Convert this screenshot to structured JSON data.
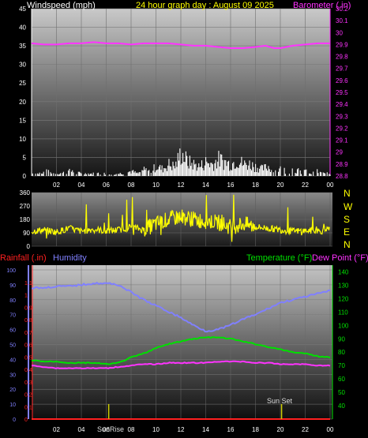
{
  "header": {
    "left_title": "Windspeed (mph)",
    "center_title": "24 hour graph day : August 09 2025",
    "right_title": "Barometer (.in)"
  },
  "colors": {
    "background": "#000000",
    "wind_bars": "#ffffff",
    "barometer": "#ff33ff",
    "wind_direction": "#ffff00",
    "humidity": "#8080ff",
    "temperature": "#00e000",
    "dew_point": "#ff33ff",
    "rainfall": "#ff2020",
    "sun_marker": "#cccc00",
    "left_axis_top": "#ffffff",
    "left_axis_humidity": "#8080ff",
    "rain_axis": "#ff2020",
    "temp_axis": "#00e000"
  },
  "wind_direction_labels": [
    "N",
    "W",
    "S",
    "E",
    "N"
  ],
  "bottom_header": {
    "rainfall_label": "Rainfall (.in)",
    "humidity_label": "Humidity",
    "temperature_label": "Temperature (°F)",
    "dewpoint_label": "Dew Point (°F)"
  },
  "sun": {
    "sunrise_label": "SunRise",
    "sunset_label": "Sun Set",
    "sunrise_hour": 6.2,
    "sunset_hour": 20.1
  },
  "chart_data": [
    {
      "type": "bar",
      "title": "Windspeed (mph) / Barometer (.in)",
      "x_tick_labels": [
        "02",
        "04",
        "06",
        "08",
        "10",
        "12",
        "14",
        "16",
        "18",
        "20",
        "22",
        "00"
      ],
      "wind_axis": {
        "ylim": [
          0,
          45
        ],
        "ticks": [
          0,
          5,
          10,
          15,
          20,
          25,
          30,
          35,
          40,
          45
        ]
      },
      "baro_axis": {
        "ylim": [
          28.8,
          30.2
        ],
        "ticks": [
          "28.8",
          "28.9",
          "29",
          "29.1",
          "29.2",
          "29.3",
          "29.4",
          "29.5",
          "29.6",
          "29.7",
          "29.8",
          "29.9",
          "30",
          "30.1",
          "30.2"
        ]
      },
      "windspeed_max_points": [
        [
          0.5,
          1
        ],
        [
          1,
          2
        ],
        [
          2,
          1
        ],
        [
          3,
          2
        ],
        [
          4,
          1
        ],
        [
          5,
          1
        ],
        [
          6,
          1
        ],
        [
          7,
          1
        ],
        [
          8,
          2
        ],
        [
          8.5,
          1
        ],
        [
          9,
          3
        ],
        [
          9.5,
          2
        ],
        [
          10,
          4
        ],
        [
          10.5,
          3
        ],
        [
          11,
          5
        ],
        [
          11.5,
          4
        ],
        [
          12,
          10
        ],
        [
          12.5,
          6
        ],
        [
          13,
          5
        ],
        [
          13.5,
          4
        ],
        [
          14,
          6
        ],
        [
          14.5,
          5
        ],
        [
          15,
          7
        ],
        [
          15.5,
          6
        ],
        [
          16,
          5
        ],
        [
          16.5,
          7
        ],
        [
          17,
          5
        ],
        [
          17.5,
          5
        ],
        [
          18,
          4
        ],
        [
          18.5,
          3
        ],
        [
          19,
          4
        ],
        [
          19.5,
          2
        ],
        [
          20,
          3
        ],
        [
          20.5,
          2
        ],
        [
          21,
          3
        ],
        [
          21.5,
          2
        ],
        [
          22,
          2
        ],
        [
          22.5,
          1
        ],
        [
          23,
          2
        ],
        [
          23.5,
          1
        ]
      ],
      "barometer_points": [
        [
          0,
          29.91
        ],
        [
          1,
          29.9
        ],
        [
          2,
          29.9
        ],
        [
          3,
          29.91
        ],
        [
          4,
          29.91
        ],
        [
          5,
          29.92
        ],
        [
          6,
          29.91
        ],
        [
          7,
          29.91
        ],
        [
          8,
          29.9
        ],
        [
          9,
          29.91
        ],
        [
          10,
          29.91
        ],
        [
          11,
          29.91
        ],
        [
          12,
          29.9
        ],
        [
          13,
          29.89
        ],
        [
          14,
          29.89
        ],
        [
          15,
          29.88
        ],
        [
          16,
          29.87
        ],
        [
          17,
          29.87
        ],
        [
          18,
          29.88
        ],
        [
          18.8,
          29.89
        ],
        [
          19.5,
          29.87
        ],
        [
          20,
          29.87
        ],
        [
          21,
          29.89
        ],
        [
          22,
          29.9
        ],
        [
          23,
          29.91
        ],
        [
          24,
          29.91
        ]
      ]
    },
    {
      "type": "scatter",
      "title": "Wind direction",
      "ylim": [
        0,
        360
      ],
      "y_ticks": [
        "0",
        "90",
        "180",
        "270",
        "360"
      ],
      "direction_points": [
        [
          0,
          100
        ],
        [
          1,
          110
        ],
        [
          2,
          95
        ],
        [
          3,
          120
        ],
        [
          4,
          100
        ],
        [
          5,
          115
        ],
        [
          6,
          100
        ],
        [
          7,
          110
        ],
        [
          8,
          130
        ],
        [
          9,
          110
        ],
        [
          10,
          150
        ],
        [
          11,
          180
        ],
        [
          12,
          200
        ],
        [
          13,
          180
        ],
        [
          14,
          170
        ],
        [
          15,
          160
        ],
        [
          16,
          130
        ],
        [
          17,
          150
        ],
        [
          18,
          130
        ],
        [
          19,
          120
        ],
        [
          20,
          110
        ],
        [
          21,
          100
        ],
        [
          22,
          105
        ],
        [
          23,
          100
        ],
        [
          24,
          110
        ]
      ]
    },
    {
      "type": "line",
      "title": "Rainfall / Humidity / Temperature / Dew Point",
      "humidity_axis": {
        "ylim": [
          0,
          100
        ],
        "ticks": [
          "0",
          "10",
          "20",
          "30",
          "40",
          "50",
          "60",
          "70",
          "80",
          "90",
          "100"
        ]
      },
      "rain_axis": {
        "ylim": [
          0,
          1.2
        ],
        "ticks": [
          "0",
          "0.1",
          "0.2",
          "0.3",
          "0.4",
          "0.5",
          "0.6",
          "0.7",
          "0.8",
          "0.9",
          "1",
          "1.1"
        ]
      },
      "temp_axis": {
        "ylim": [
          30,
          145
        ],
        "ticks": [
          "40",
          "50",
          "60",
          "70",
          "80",
          "90",
          "100",
          "110",
          "120",
          "130",
          "140"
        ]
      },
      "series": [
        {
          "name": "Humidity",
          "points": [
            [
              0,
              88
            ],
            [
              1,
              88
            ],
            [
              2,
              89
            ],
            [
              3,
              89
            ],
            [
              4,
              90
            ],
            [
              5,
              91
            ],
            [
              6,
              91
            ],
            [
              7,
              90
            ],
            [
              8,
              85
            ],
            [
              9,
              80
            ],
            [
              10,
              76
            ],
            [
              11,
              72
            ],
            [
              12,
              68
            ],
            [
              13,
              63
            ],
            [
              14,
              59
            ],
            [
              15,
              60
            ],
            [
              16,
              63
            ],
            [
              17,
              67
            ],
            [
              18,
              70
            ],
            [
              19,
              74
            ],
            [
              20,
              78
            ],
            [
              21,
              80
            ],
            [
              22,
              82
            ],
            [
              23,
              84
            ],
            [
              24,
              86
            ]
          ]
        },
        {
          "name": "Temperature",
          "points": [
            [
              0,
              74
            ],
            [
              1,
              73
            ],
            [
              2,
              73
            ],
            [
              3,
              72
            ],
            [
              4,
              72
            ],
            [
              5,
              72
            ],
            [
              6,
              71
            ],
            [
              7,
              72
            ],
            [
              8,
              76
            ],
            [
              9,
              79
            ],
            [
              10,
              83
            ],
            [
              11,
              86
            ],
            [
              12,
              88
            ],
            [
              13,
              90
            ],
            [
              14,
              91
            ],
            [
              15,
              91
            ],
            [
              16,
              90
            ],
            [
              17,
              88
            ],
            [
              18,
              86
            ],
            [
              19,
              84
            ],
            [
              20,
              82
            ],
            [
              21,
              80
            ],
            [
              22,
              79
            ],
            [
              23,
              77
            ],
            [
              24,
              76
            ]
          ]
        },
        {
          "name": "Dew Point",
          "points": [
            [
              0,
              70
            ],
            [
              1,
              69
            ],
            [
              2,
              68
            ],
            [
              3,
              68
            ],
            [
              4,
              68
            ],
            [
              5,
              68
            ],
            [
              6,
              68
            ],
            [
              7,
              69
            ],
            [
              8,
              70
            ],
            [
              9,
              71
            ],
            [
              10,
              71
            ],
            [
              11,
              72
            ],
            [
              12,
              72
            ],
            [
              13,
              72
            ],
            [
              14,
              72
            ],
            [
              15,
              73
            ],
            [
              16,
              73
            ],
            [
              17,
              73
            ],
            [
              18,
              72
            ],
            [
              19,
              72
            ],
            [
              20,
              71
            ],
            [
              21,
              71
            ],
            [
              22,
              71
            ],
            [
              23,
              70
            ],
            [
              24,
              70
            ]
          ]
        },
        {
          "name": "Rainfall",
          "points": [
            [
              0,
              0
            ],
            [
              24,
              0
            ]
          ]
        }
      ],
      "x_tick_labels": [
        "02",
        "04",
        "06",
        "08",
        "10",
        "12",
        "14",
        "16",
        "18",
        "20",
        "22",
        "00"
      ]
    }
  ]
}
